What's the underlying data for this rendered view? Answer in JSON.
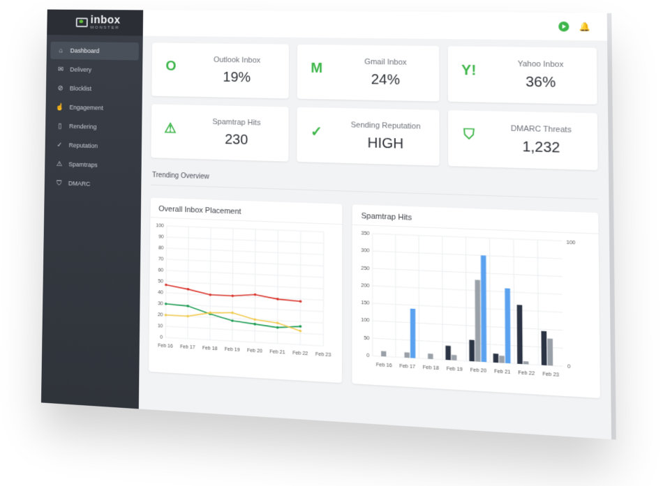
{
  "brand": {
    "logo_main": "inbox",
    "logo_sub": "MONSTER"
  },
  "sidebar": {
    "items": [
      {
        "label": "Dashboard",
        "icon": "home-icon",
        "active": true
      },
      {
        "label": "Delivery",
        "icon": "envelope-open-icon"
      },
      {
        "label": "Blocklist",
        "icon": "ban-icon"
      },
      {
        "label": "Engagement",
        "icon": "cursor-click-icon"
      },
      {
        "label": "Rendering",
        "icon": "mobile-icon"
      },
      {
        "label": "Reputation",
        "icon": "check-circle-icon"
      },
      {
        "label": "Spamtraps",
        "icon": "warning-icon"
      },
      {
        "label": "DMARC",
        "icon": "shield-check-icon"
      }
    ]
  },
  "cards": [
    {
      "title": "Outlook Inbox",
      "value": "19%",
      "icon": "outlook-icon",
      "glyph": "O"
    },
    {
      "title": "Gmail Inbox",
      "value": "24%",
      "icon": "gmail-icon",
      "glyph": "M"
    },
    {
      "title": "Yahoo Inbox",
      "value": "36%",
      "icon": "yahoo-icon",
      "glyph": "Y!"
    },
    {
      "title": "Spamtrap Hits",
      "value": "230",
      "icon": "warning-icon",
      "glyph": "⚠"
    },
    {
      "title": "Sending Reputation",
      "value": "HIGH",
      "icon": "badge-check-icon",
      "glyph": "✓"
    },
    {
      "title": "DMARC Threats",
      "value": "1,232",
      "icon": "shield-check-icon",
      "glyph": "⛉"
    }
  ],
  "section": {
    "trending_title": "Trending Overview"
  },
  "colors": {
    "accent": "#3fb64b",
    "sidebar": "#353a42",
    "red": "#d9342b",
    "green": "#1f9d55",
    "yellow": "#f2c94c",
    "blue": "#5aa2f0",
    "navy": "#2b3444",
    "gray": "#9aa0a8"
  },
  "chart_data": [
    {
      "type": "line",
      "title": "Overall Inbox Placement",
      "categories": [
        "Feb 16",
        "Feb 17",
        "Feb 18",
        "Feb 19",
        "Feb 20",
        "Feb 21",
        "Feb 22",
        "Feb 23"
      ],
      "ylim": [
        0,
        100
      ],
      "yticks": [
        0,
        10,
        20,
        30,
        40,
        50,
        60,
        70,
        80,
        90,
        100
      ],
      "series": [
        {
          "color": "#d9342b",
          "values": [
            47,
            44,
            40,
            40,
            42,
            39,
            38,
            null
          ]
        },
        {
          "color": "#1f9d55",
          "values": [
            30,
            29,
            23,
            18,
            16,
            14,
            16,
            null
          ]
        },
        {
          "color": "#f2c94c",
          "values": [
            20,
            20,
            24,
            25,
            20,
            18,
            12,
            null
          ]
        }
      ]
    },
    {
      "type": "bar",
      "title": "Spamtrap Hits",
      "categories": [
        "Feb 16",
        "Feb 17",
        "Feb 18",
        "Feb 19",
        "Feb 20",
        "Feb 21",
        "Feb 22",
        "Feb 23"
      ],
      "ylim": [
        0,
        350
      ],
      "yticks": [
        0,
        50,
        100,
        150,
        200,
        250,
        300,
        350
      ],
      "y2_labels": [
        "100",
        "0"
      ],
      "series": [
        {
          "color": "#2b3444",
          "values": [
            0,
            0,
            0,
            40,
            60,
            25,
            165,
            95
          ]
        },
        {
          "color": "#9aa0a8",
          "values": [
            15,
            15,
            15,
            15,
            230,
            20,
            8,
            75
          ]
        },
        {
          "color": "#5aa2f0",
          "values": [
            0,
            140,
            0,
            0,
            300,
            210,
            0,
            0
          ]
        }
      ]
    }
  ]
}
